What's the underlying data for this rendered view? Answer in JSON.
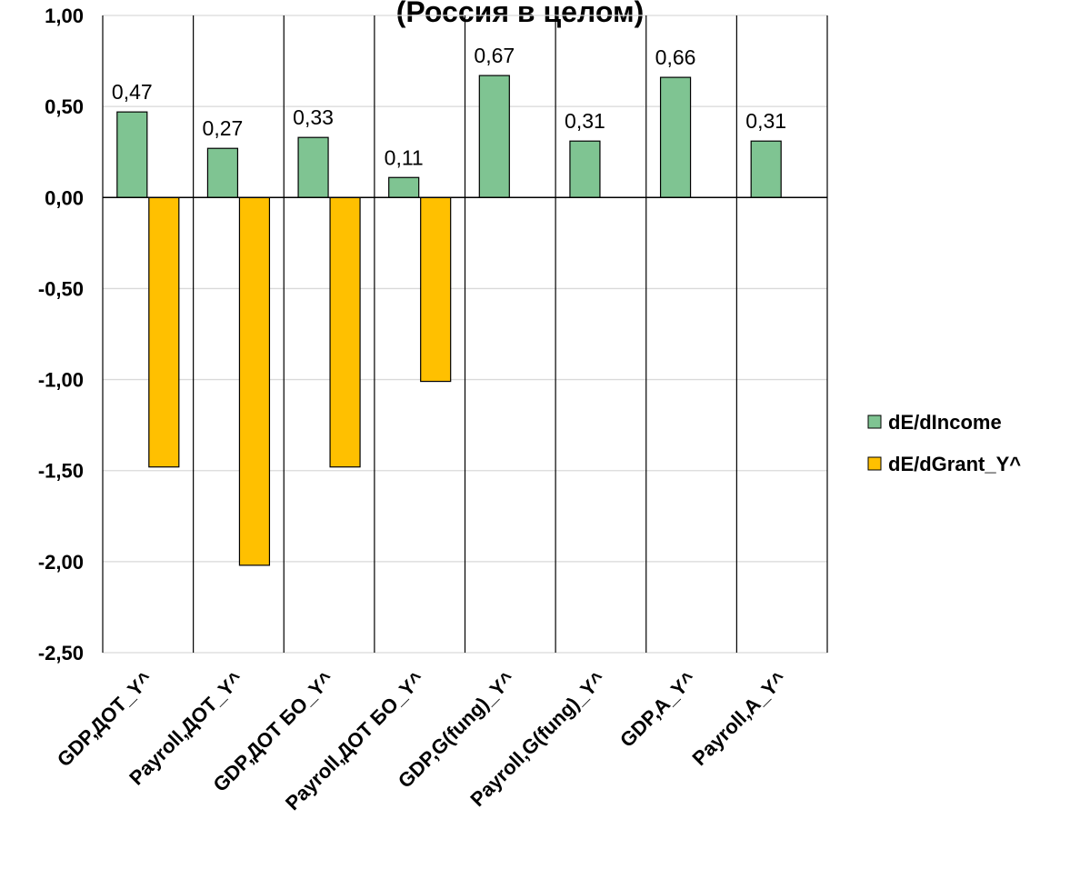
{
  "chart_data": {
    "type": "bar",
    "title": "(Россия в целом)",
    "categories": [
      "GDP,ДОТ_Y^",
      "Payroll,ДОТ_Y^",
      "GDP,ДОТ БО_Y^",
      "Payroll,ДОТ БО_Y^",
      "GDP,G(fung)_Y^",
      "Payroll,G(fung)_Y^",
      "GDP,A_Y^",
      "Payroll,A_Y^"
    ],
    "series": [
      {
        "name": "dE/dIncome",
        "color": "#7fc492",
        "values": [
          0.47,
          0.27,
          0.33,
          0.11,
          0.67,
          0.31,
          0.66,
          0.31
        ],
        "labels": [
          "0,47",
          "0,27",
          "0,33",
          "0,11",
          "0,67",
          "0,31",
          "0,66",
          "0,31"
        ]
      },
      {
        "name": "dE/dGrant_Y^",
        "color": "#ffc000",
        "values": [
          -1.48,
          -2.02,
          -1.48,
          -1.01,
          null,
          null,
          null,
          null
        ]
      }
    ],
    "ylim": [
      -2.5,
      1.0
    ],
    "yticks": [
      "1,00",
      "0,50",
      "0,00",
      "-0,50",
      "-1,00",
      "-1,50",
      "-2,00",
      "-2,50"
    ],
    "ytick_values": [
      1.0,
      0.5,
      0.0,
      -0.5,
      -1.0,
      -1.5,
      -2.0,
      -2.5
    ],
    "grid": true,
    "legend_position": "right"
  }
}
